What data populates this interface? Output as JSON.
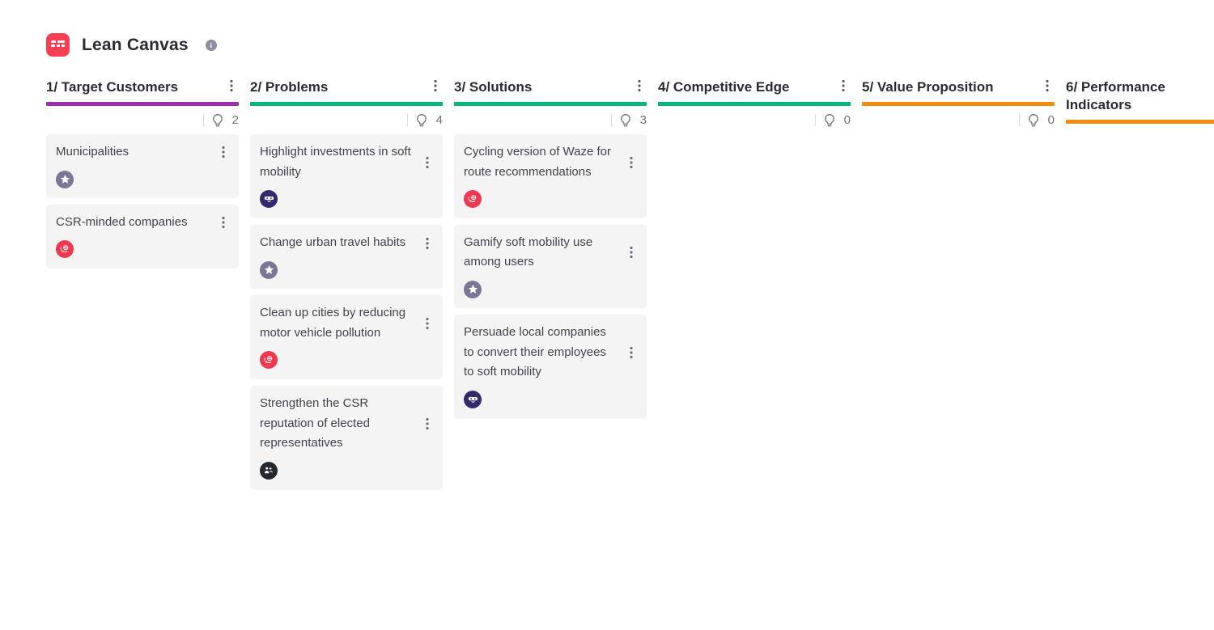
{
  "header": {
    "title": "Lean Canvas",
    "logo_icon": "lean-canvas-board-icon",
    "info_icon": "info-circle-icon"
  },
  "icons": {
    "column_menu": "kebab-menu-icon",
    "card_menu": "kebab-menu-icon",
    "counter": "lightbulb-icon"
  },
  "badge_colors": {
    "star": "#7b7795",
    "community": "#ef3950",
    "mask": "#34296d",
    "group": "#24292c"
  },
  "board": {
    "columns": [
      {
        "title": "1/ Target Customers",
        "accent": "#9c2fae",
        "count": "2",
        "menu_visible": true,
        "counter_visible": true,
        "cards": [
          {
            "title": "Municipalities",
            "badge": "star"
          },
          {
            "title": "CSR-minded companies",
            "badge": "community"
          }
        ]
      },
      {
        "title": "2/ Problems",
        "accent": "#00b878",
        "count": "4",
        "menu_visible": true,
        "counter_visible": true,
        "cards": [
          {
            "title": "Highlight investments in soft mobility",
            "badge": "mask"
          },
          {
            "title": "Change urban travel habits",
            "badge": "star"
          },
          {
            "title": "Clean up cities by reducing motor vehicle pollution",
            "badge": "community"
          },
          {
            "title": "Strengthen the CSR reputation of elected representatives",
            "badge": "group"
          }
        ]
      },
      {
        "title": "3/ Solutions",
        "accent": "#00b878",
        "count": "3",
        "menu_visible": true,
        "counter_visible": true,
        "cards": [
          {
            "title": "Cycling version of Waze for route recommendations",
            "badge": "community"
          },
          {
            "title": "Gamify soft mobility use among users",
            "badge": "star"
          },
          {
            "title": "Persuade local companies to convert their employees to soft mobility",
            "badge": "mask"
          }
        ]
      },
      {
        "title": "4/ Competitive Edge",
        "accent": "#00b878",
        "count": "0",
        "menu_visible": true,
        "counter_visible": true,
        "cards": []
      },
      {
        "title": "5/ Value Proposition",
        "accent": "#f28b0e",
        "count": "0",
        "menu_visible": true,
        "counter_visible": true,
        "cards": []
      },
      {
        "title": "6/ Performance Indicators",
        "accent": "#f28b0e",
        "count": null,
        "menu_visible": false,
        "counter_visible": false,
        "cards": []
      }
    ]
  }
}
